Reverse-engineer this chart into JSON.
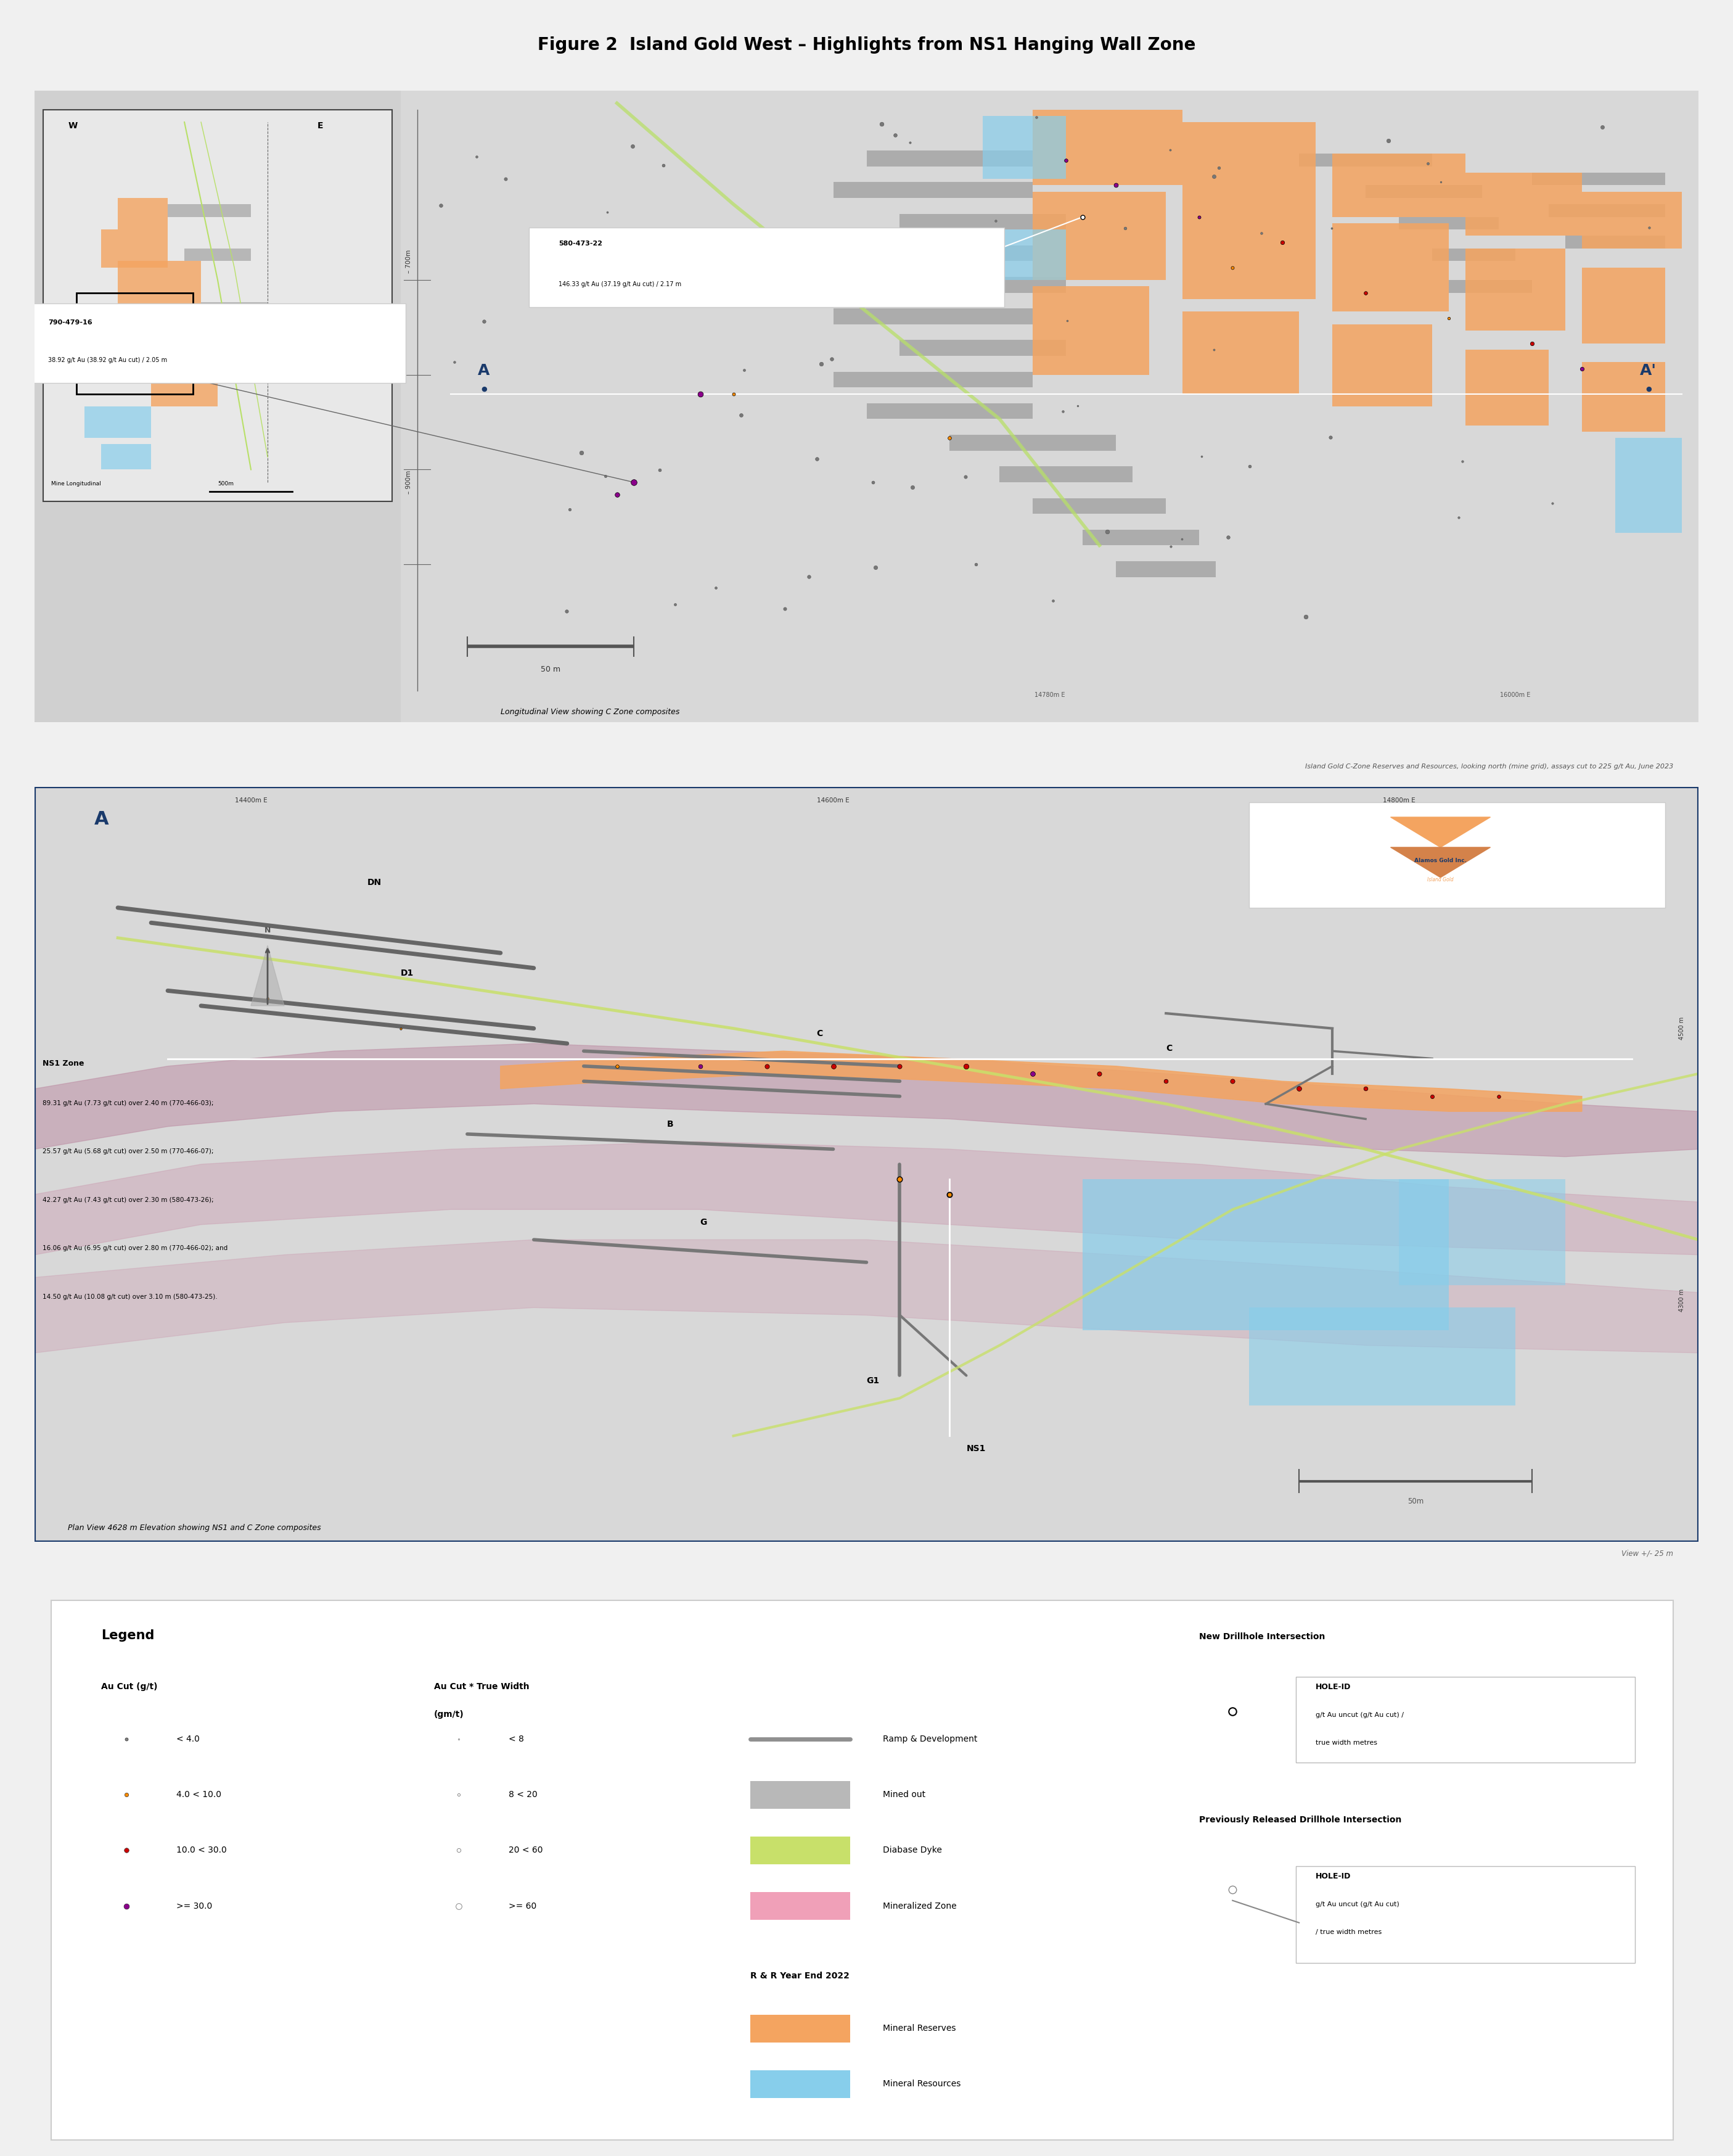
{
  "title": "Figure 2  Island Gold West – Highlights from NS1 Hanging Wall Zone",
  "bg_color": "#f0f0f0",
  "border_color": "#1a3a6b",
  "top_panel": {
    "label": "Longitudinal View showing C Zone composites",
    "note": "Island Gold C-Zone Reserves and Resources, looking north (mine grid), assays cut to 225 g/t Au, June 2023",
    "y_label": "– 700m",
    "y_label2": "– 900m",
    "easting_label1": "14780m E",
    "easting_label2": "16000m E",
    "annotation1_title": "580-473-22",
    "annotation1_text": "146.33 g/t Au (37.19 g/t Au cut) / 2.17 m",
    "annotation2_title": "790-479-16",
    "annotation2_text": "38.92 g/t Au (38.92 g/t Au cut) / 2.05 m"
  },
  "bottom_panel": {
    "label": "Plan View 4628 m Elevation showing NS1 and C Zone composites",
    "note": "View +/- 25 m",
    "easting1": "14400m E",
    "easting2": "14600m E",
    "easting3": "14800m E",
    "elevation1": "4500 m",
    "elevation2": "4300 m",
    "company": "Alamos Gold Inc.",
    "sub_company": "Island Gold",
    "ns1_zone_title": "NS1 Zone",
    "ns1_zone_lines": [
      "89.31 g/t Au (7.73 g/t cut) over 2.40 m (",
      "770-466-03",
      ");",
      "25.57 g/t Au (5.68 g/t cut) over 2.50 m (",
      "770-466-07",
      ");",
      "42.27 g/t Au (7.43 g/t cut) over 2.30 m (",
      "580-473-26",
      ");",
      "16.06 g/t Au (6.95 g/t cut) over 2.80 m (",
      "770-466-02",
      "); and",
      "14.50 g/t Au (10.08 g/t cut) over 3.10 m (",
      "580-473-25",
      ")."
    ]
  },
  "legend": {
    "title": "Legend",
    "au_cut_title": "Au Cut (g/t)",
    "au_cut_items": [
      {
        "label": "< 4.0",
        "color": "#808080"
      },
      {
        "label": "4.0 < 10.0",
        "color": "#ff8c00"
      },
      {
        "label": "10.0 < 30.0",
        "color": "#cc0000"
      },
      {
        "label": ">= 30.0",
        "color": "#8b008b"
      }
    ],
    "au_cut_width_title": "Au Cut * True Width",
    "au_cut_width_subtitle": "(gm/t)",
    "au_cut_width_items": [
      {
        "label": "< 8"
      },
      {
        "label": "8 < 20"
      },
      {
        "label": "20 < 60"
      },
      {
        "label": ">= 60"
      }
    ],
    "line_items": [
      {
        "label": "Ramp & Development",
        "color": "#909090"
      },
      {
        "label": "Mined out",
        "color": "#b0b0b0"
      },
      {
        "label": "Diabase Dyke",
        "color": "#c8e06a"
      },
      {
        "label": "Mineralized Zone",
        "color": "#f0a0b8"
      }
    ],
    "rr_title": "R & R Year End 2022",
    "rr_items": [
      {
        "label": "Mineral Reserves",
        "color": "#f4a460"
      },
      {
        "label": "Mineral Resources",
        "color": "#87ceeb"
      }
    ],
    "new_drillhole_title": "New Drillhole Intersection",
    "new_drillhole_lines": [
      "HOLE-ID",
      "g/t Au uncut (g/t Au cut) /",
      "true width metres"
    ],
    "prev_drillhole_title": "Previously Released Drillhole Intersection",
    "prev_drillhole_lines": [
      "HOLE-ID",
      "g/t Au uncut (g/t Au cut)",
      "/ true width metres"
    ]
  }
}
